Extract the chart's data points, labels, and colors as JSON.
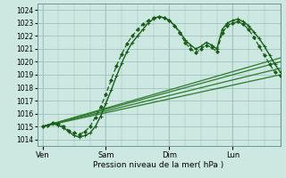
{
  "xlabel": "Pression niveau de la mer( hPa )",
  "bg_color": "#cce8e0",
  "plot_bg_color": "#cce8e0",
  "grid_color": "#99bbbb",
  "line_dark": "#1a5c1a",
  "line_med": "#2d7a2d",
  "ylim": [
    1013.5,
    1024.5
  ],
  "yticks": [
    1014,
    1015,
    1016,
    1017,
    1018,
    1019,
    1020,
    1021,
    1022,
    1023,
    1024
  ],
  "day_labels": [
    "Ven",
    "Sam",
    "Dim",
    "Lun"
  ],
  "day_positions": [
    0,
    24,
    48,
    72
  ],
  "xlim": [
    -2,
    90
  ],
  "figsize": [
    3.2,
    2.0
  ],
  "dpi": 100,
  "straight_lines": [
    {
      "x": [
        0,
        90
      ],
      "y": [
        1015.0,
        1019.0
      ]
    },
    {
      "x": [
        0,
        90
      ],
      "y": [
        1015.0,
        1019.5
      ]
    },
    {
      "x": [
        0,
        90
      ],
      "y": [
        1015.0,
        1020.0
      ]
    },
    {
      "x": [
        0,
        90
      ],
      "y": [
        1015.0,
        1020.3
      ]
    }
  ],
  "curve1_t": [
    0,
    2,
    4,
    6,
    8,
    10,
    12,
    14,
    16,
    18,
    20,
    22,
    24,
    26,
    28,
    30,
    32,
    34,
    36,
    38,
    40,
    42,
    44,
    46,
    48,
    50,
    52,
    54,
    56,
    58,
    60,
    62,
    64,
    66,
    68,
    70,
    72,
    74,
    76,
    78,
    80,
    82,
    84,
    86,
    88,
    90
  ],
  "curve1_v": [
    1015.0,
    1015.1,
    1015.2,
    1015.1,
    1014.9,
    1014.6,
    1014.3,
    1014.2,
    1014.3,
    1014.5,
    1015.0,
    1015.8,
    1016.8,
    1017.8,
    1018.9,
    1019.9,
    1020.8,
    1021.5,
    1022.0,
    1022.5,
    1023.0,
    1023.3,
    1023.5,
    1023.4,
    1023.2,
    1022.8,
    1022.3,
    1021.7,
    1021.3,
    1021.0,
    1021.2,
    1021.5,
    1021.3,
    1021.0,
    1022.5,
    1023.0,
    1023.2,
    1023.3,
    1023.1,
    1022.8,
    1022.3,
    1021.8,
    1021.2,
    1020.5,
    1019.8,
    1019.2
  ],
  "curve2_t": [
    0,
    2,
    4,
    6,
    8,
    10,
    12,
    14,
    16,
    18,
    20,
    22,
    24,
    26,
    28,
    30,
    32,
    34,
    36,
    38,
    40,
    42,
    44,
    46,
    48,
    50,
    52,
    54,
    56,
    58,
    60,
    62,
    64,
    66,
    68,
    70,
    72,
    74,
    76,
    78,
    80,
    82,
    84,
    86,
    88,
    90
  ],
  "curve2_v": [
    1015.0,
    1015.1,
    1015.3,
    1015.2,
    1015.0,
    1014.7,
    1014.5,
    1014.4,
    1014.6,
    1015.0,
    1015.7,
    1016.5,
    1017.5,
    1018.6,
    1019.7,
    1020.6,
    1021.4,
    1022.0,
    1022.5,
    1022.9,
    1023.2,
    1023.4,
    1023.5,
    1023.4,
    1023.2,
    1022.8,
    1022.2,
    1021.5,
    1021.0,
    1020.7,
    1021.0,
    1021.3,
    1021.1,
    1020.8,
    1022.2,
    1022.8,
    1023.0,
    1023.1,
    1022.9,
    1022.5,
    1021.9,
    1021.2,
    1020.5,
    1019.8,
    1019.2,
    1018.9
  ]
}
